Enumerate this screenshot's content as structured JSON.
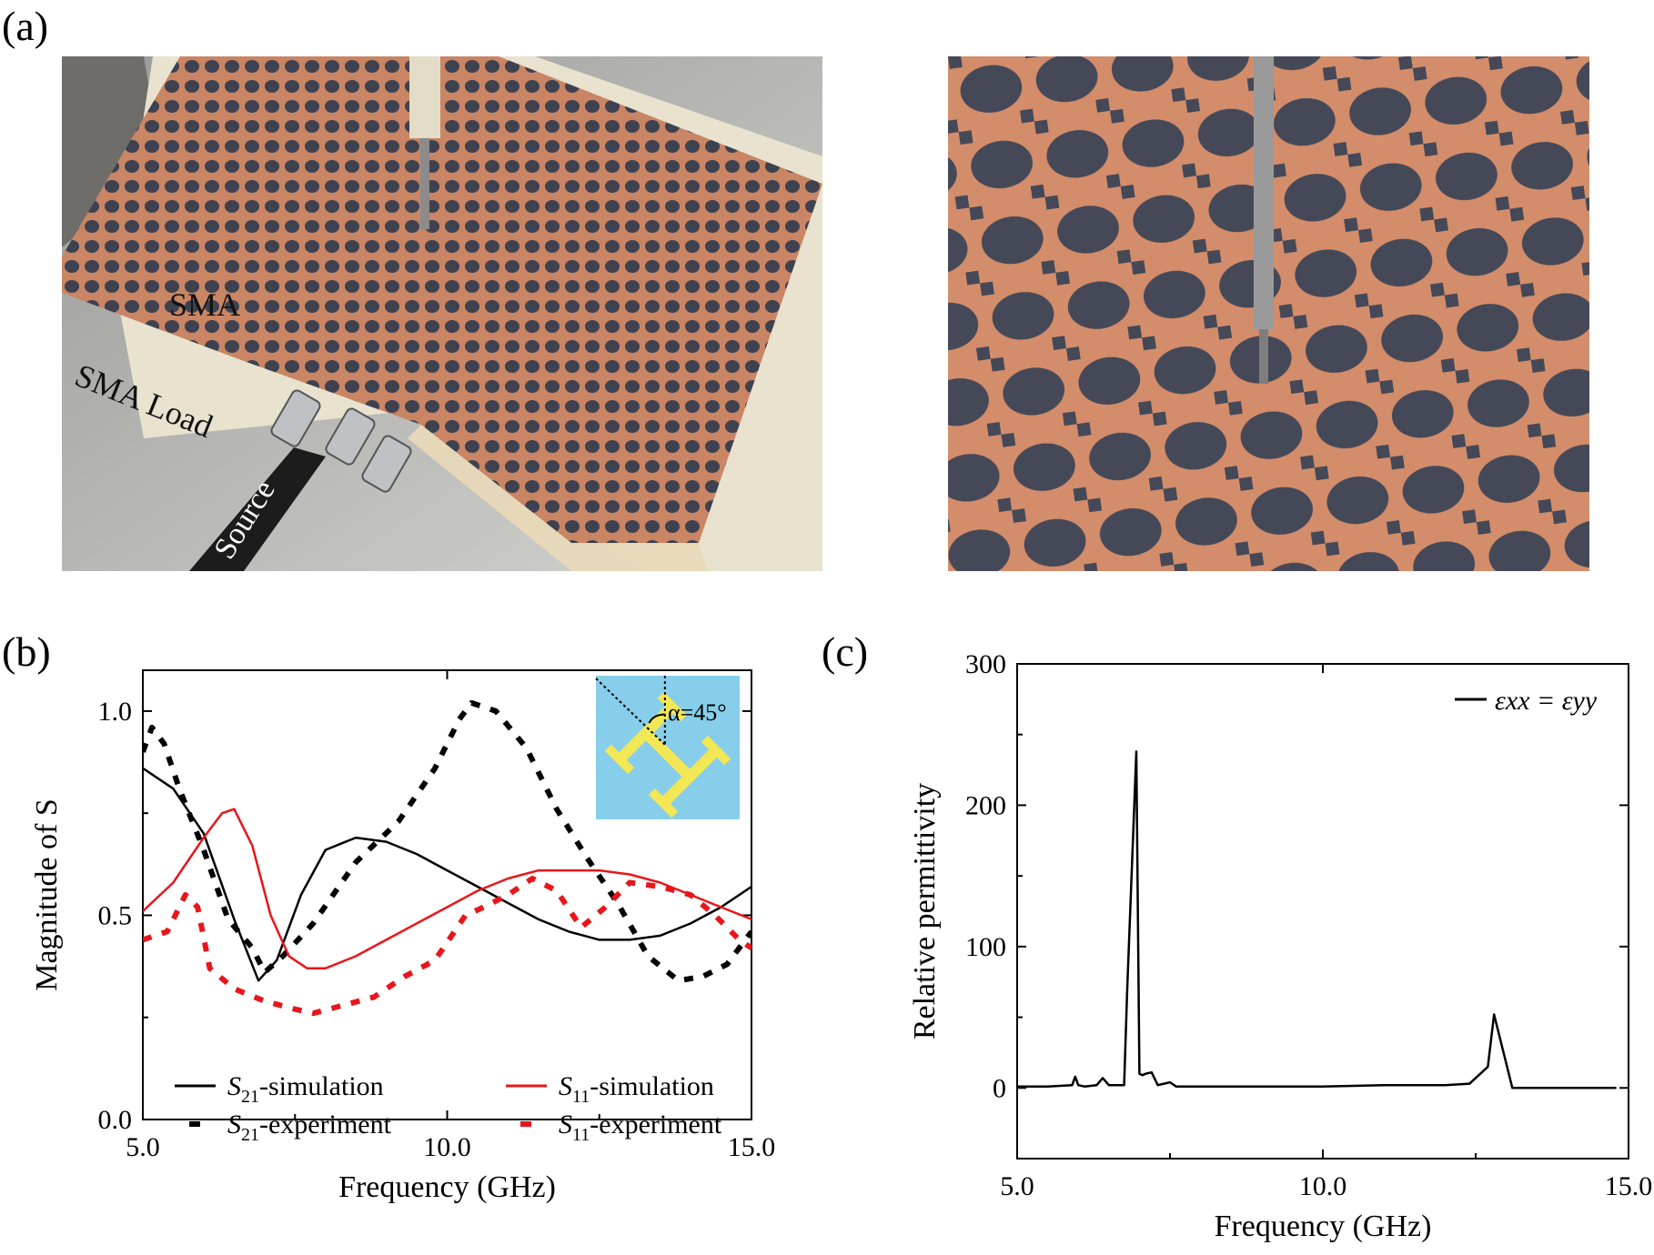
{
  "panels": {
    "a": "(a)",
    "b": "(b)",
    "c": "(c)"
  },
  "photo_left": {
    "labels": [
      "SMA",
      "SMA Load",
      "Source"
    ]
  },
  "colors": {
    "black": "#000000",
    "red": "#e8161b",
    "inset_bg": "#87ceeb",
    "inset_pattern": "#f2e755",
    "copper": "#d58a62",
    "substrate": "#3d4150"
  },
  "chart_data": [
    {
      "type": "line",
      "xlabel": "Frequency (GHz)",
      "ylabel": "Magnitude of S",
      "xlim": [
        5.0,
        15.0
      ],
      "ylim": [
        0.0,
        1.1
      ],
      "xticks": [
        "5.0",
        "10.0",
        "15.0"
      ],
      "yticks": [
        "0.0",
        "0.5",
        "1.0"
      ],
      "inset": {
        "label": "α=45°"
      },
      "legend_position": "bottom",
      "series": [
        {
          "name": "S21-simulation",
          "sub": "21",
          "suffix": "-simulation",
          "style": "solid",
          "color": "#000000",
          "x": [
            5.0,
            5.5,
            6.0,
            6.5,
            6.9,
            7.2,
            7.6,
            8.0,
            8.5,
            9.0,
            9.5,
            10.0,
            10.5,
            11.0,
            11.5,
            12.0,
            12.5,
            13.0,
            13.5,
            14.0,
            14.5,
            15.0
          ],
          "y": [
            0.86,
            0.81,
            0.7,
            0.49,
            0.34,
            0.39,
            0.55,
            0.66,
            0.69,
            0.68,
            0.65,
            0.61,
            0.57,
            0.53,
            0.49,
            0.46,
            0.44,
            0.44,
            0.45,
            0.48,
            0.52,
            0.57
          ]
        },
        {
          "name": "S21-experiment",
          "sub": "21",
          "suffix": "-experiment",
          "style": "dashed",
          "color": "#000000",
          "x": [
            5.0,
            5.15,
            5.35,
            5.6,
            6.0,
            6.4,
            6.8,
            7.0,
            7.3,
            7.8,
            8.5,
            9.2,
            9.8,
            10.2,
            10.4,
            10.8,
            11.3,
            11.8,
            12.3,
            12.8,
            13.3,
            13.8,
            14.2,
            14.6,
            15.0
          ],
          "y": [
            0.9,
            0.96,
            0.92,
            0.81,
            0.66,
            0.49,
            0.42,
            0.36,
            0.4,
            0.48,
            0.63,
            0.73,
            0.86,
            0.98,
            1.02,
            1.0,
            0.91,
            0.76,
            0.64,
            0.53,
            0.4,
            0.34,
            0.35,
            0.38,
            0.46
          ]
        },
        {
          "name": "S11-simulation",
          "sub": "11",
          "suffix": "-simulation",
          "style": "solid",
          "color": "#e8161b",
          "x": [
            5.0,
            5.5,
            6.0,
            6.3,
            6.5,
            6.8,
            7.1,
            7.4,
            7.7,
            8.0,
            8.5,
            9.0,
            9.5,
            10.0,
            10.5,
            11.0,
            11.5,
            12.0,
            12.5,
            13.0,
            13.5,
            14.0,
            14.5,
            15.0
          ],
          "y": [
            0.51,
            0.58,
            0.69,
            0.75,
            0.76,
            0.67,
            0.5,
            0.4,
            0.37,
            0.37,
            0.4,
            0.44,
            0.48,
            0.52,
            0.56,
            0.59,
            0.61,
            0.61,
            0.61,
            0.6,
            0.58,
            0.55,
            0.52,
            0.49
          ]
        },
        {
          "name": "S11-experiment",
          "sub": "11",
          "suffix": "-experiment",
          "style": "dashed",
          "color": "#e8161b",
          "x": [
            5.0,
            5.4,
            5.7,
            5.9,
            6.1,
            6.5,
            7.0,
            7.5,
            7.8,
            8.3,
            8.8,
            9.3,
            9.8,
            10.3,
            10.6,
            11.0,
            11.4,
            11.8,
            12.2,
            12.6,
            13.0,
            13.5,
            14.0,
            14.4,
            14.8,
            15.0
          ],
          "y": [
            0.44,
            0.46,
            0.55,
            0.52,
            0.37,
            0.32,
            0.29,
            0.27,
            0.26,
            0.28,
            0.3,
            0.35,
            0.39,
            0.5,
            0.52,
            0.55,
            0.59,
            0.56,
            0.47,
            0.52,
            0.58,
            0.57,
            0.55,
            0.5,
            0.44,
            0.42
          ]
        }
      ]
    },
    {
      "type": "line",
      "xlabel": "Frequency (GHz)",
      "ylabel": "Relative permittivity",
      "xlim": [
        5.0,
        15.0
      ],
      "ylim": [
        -50,
        300
      ],
      "xticks": [
        "5.0",
        "10.0",
        "15.0"
      ],
      "yticks": [
        "0",
        "100",
        "200",
        "300"
      ],
      "legend_position": "top-right",
      "series": [
        {
          "name": "εxx = εyy",
          "style": "solid",
          "color": "#000000",
          "x": [
            5.0,
            5.5,
            5.9,
            5.95,
            6.0,
            6.1,
            6.3,
            6.4,
            6.5,
            6.6,
            6.75,
            6.8,
            6.95,
            7.0,
            7.05,
            7.1,
            7.2,
            7.3,
            7.5,
            7.6,
            8.0,
            9.0,
            10.0,
            11.0,
            12.0,
            12.4,
            12.7,
            12.8,
            13.1,
            13.2,
            14.0,
            14.8
          ],
          "y": [
            1,
            1,
            2,
            8,
            2,
            1,
            2,
            7,
            2,
            2,
            2,
            70,
            238,
            10,
            9,
            10,
            11,
            2,
            4,
            1,
            1,
            1,
            1,
            2,
            2,
            3,
            15,
            52,
            0,
            0,
            0,
            0
          ]
        }
      ]
    }
  ]
}
